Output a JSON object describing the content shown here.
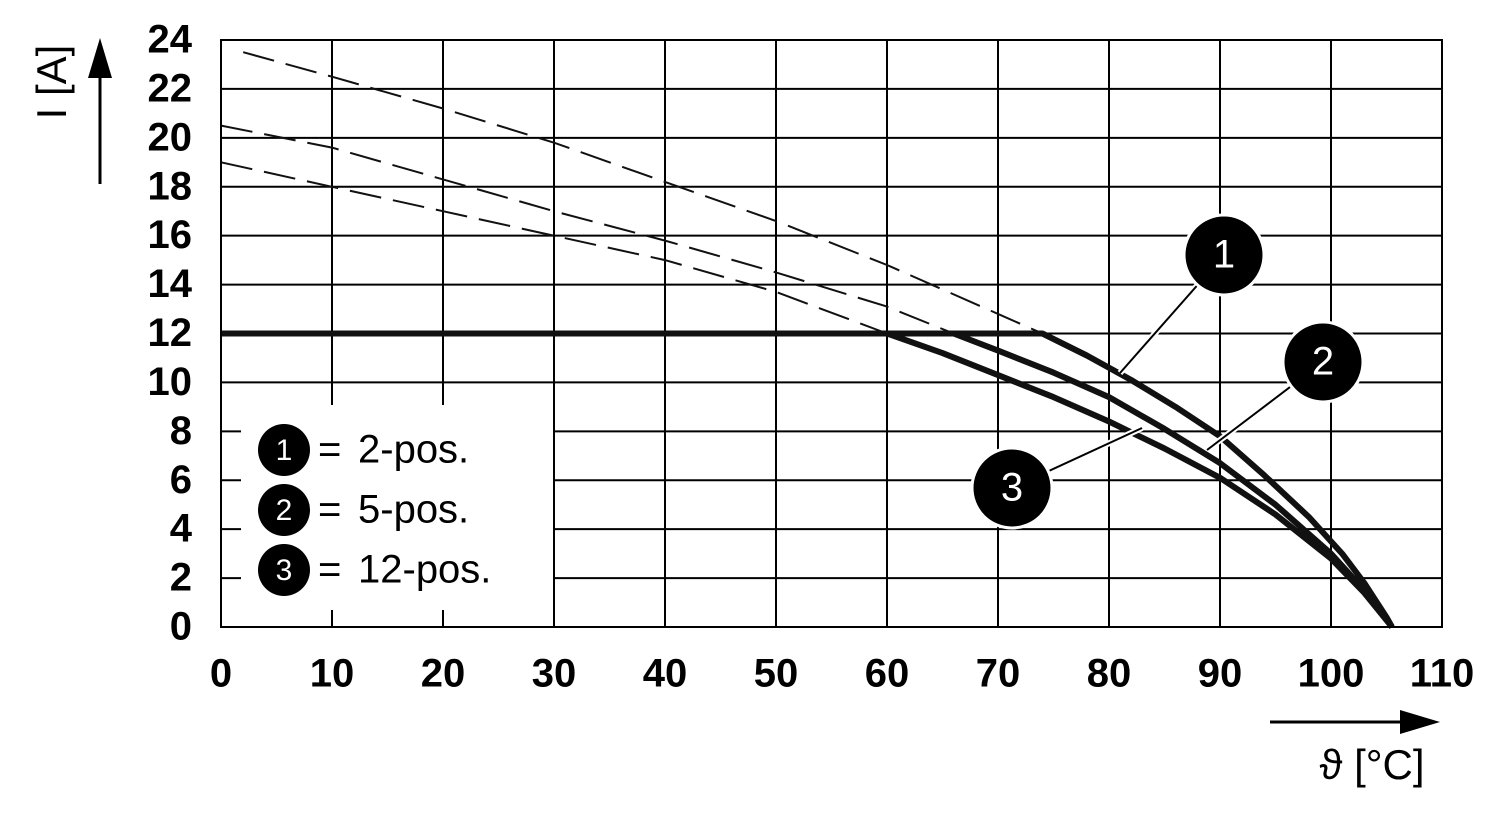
{
  "chart_data": {
    "type": "line",
    "x_label": "ϑ [°C]",
    "y_label": "I [A]",
    "xlim": [
      0,
      110
    ],
    "ylim": [
      0,
      24
    ],
    "xticks": [
      0,
      10,
      20,
      30,
      40,
      50,
      60,
      70,
      80,
      90,
      100,
      110
    ],
    "yticks": [
      0,
      2,
      4,
      6,
      8,
      10,
      12,
      14,
      16,
      18,
      20,
      22,
      24
    ],
    "grid": true,
    "legend_separator": "=",
    "series": [
      {
        "name": "2-pos.",
        "label": "1",
        "color": "#111111",
        "x": [
          0,
          74,
          78,
          82,
          86,
          90,
          94,
          98,
          101,
          103,
          105,
          105.5
        ],
        "values": [
          12,
          12,
          11.1,
          10.1,
          9.0,
          7.8,
          6.2,
          4.5,
          3.0,
          1.8,
          0.4,
          0
        ],
        "extrapolation": {
          "x": [
            2,
            10,
            20,
            30,
            40,
            50,
            60,
            70,
            74
          ],
          "values": [
            23.5,
            22.5,
            21.2,
            19.8,
            18.2,
            16.6,
            14.8,
            12.8,
            12
          ]
        }
      },
      {
        "name": "5-pos.",
        "label": "2",
        "color": "#111111",
        "x": [
          0,
          66,
          70,
          75,
          80,
          85,
          90,
          95,
          100,
          103,
          105.5
        ],
        "values": [
          12,
          12,
          11.3,
          10.4,
          9.4,
          8.1,
          6.7,
          5.0,
          3.0,
          1.5,
          0
        ],
        "extrapolation": {
          "x": [
            0,
            10,
            20,
            30,
            40,
            50,
            60,
            66
          ],
          "values": [
            20.5,
            19.6,
            18.3,
            17.0,
            15.8,
            14.5,
            13.1,
            12
          ]
        }
      },
      {
        "name": "12-pos.",
        "label": "3",
        "color": "#111111",
        "x": [
          0,
          60,
          65,
          70,
          75,
          80,
          85,
          90,
          95,
          100,
          103,
          105.5
        ],
        "values": [
          12,
          12,
          11.2,
          10.3,
          9.4,
          8.4,
          7.3,
          6.1,
          4.6,
          2.8,
          1.4,
          0
        ],
        "extrapolation": {
          "x": [
            0,
            10,
            20,
            30,
            40,
            50,
            60
          ],
          "values": [
            19,
            18.0,
            17.0,
            16.0,
            15.0,
            13.7,
            12
          ]
        }
      }
    ]
  }
}
